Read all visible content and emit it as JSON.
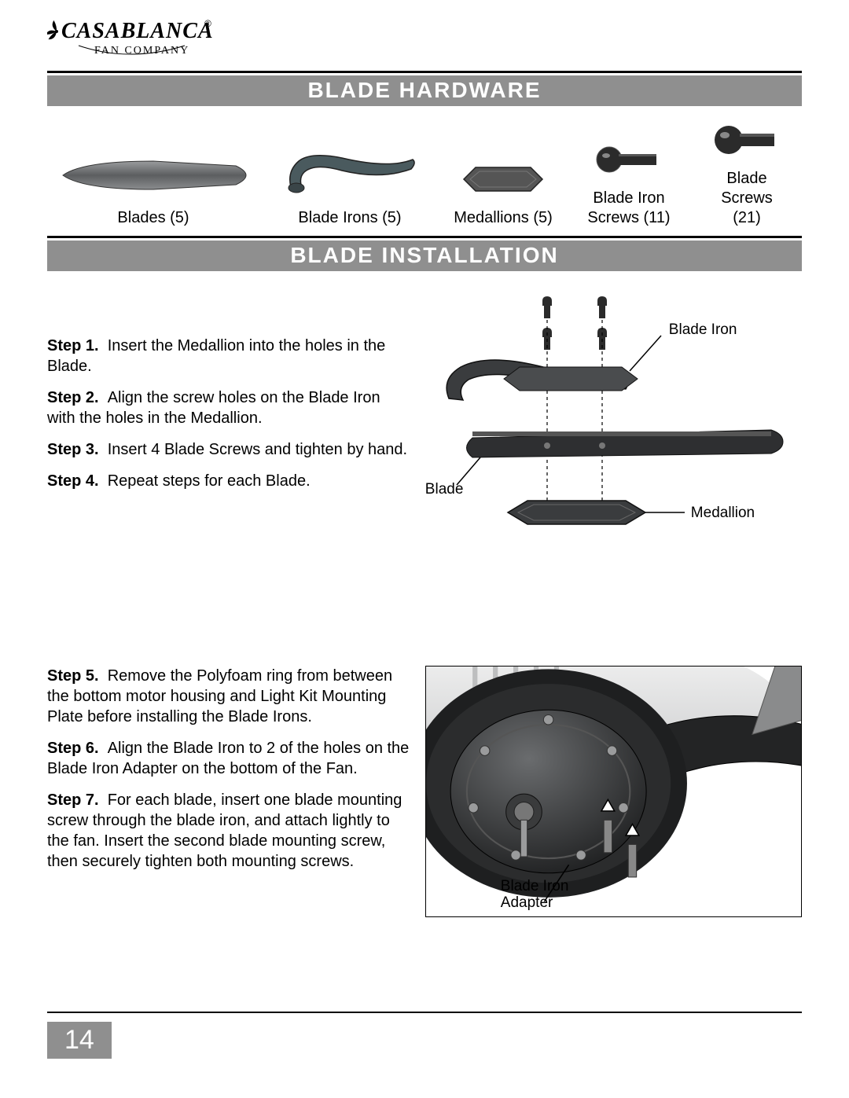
{
  "logo": {
    "brand": "CASABLANCA",
    "subtitle": "FAN COMPANY"
  },
  "sections": {
    "hardware_title": "BLADE HARDWARE",
    "installation_title": "BLADE INSTALLATION"
  },
  "hardware": [
    {
      "label": "Blades (5)"
    },
    {
      "label": "Blade Irons (5)"
    },
    {
      "label": "Medallions (5)"
    },
    {
      "label": "Blade Iron Screws (11)"
    },
    {
      "label": "Blade Screws (21)"
    }
  ],
  "steps_a": [
    {
      "num": "Step 1.",
      "text": "Insert the Medallion into the holes in the Blade."
    },
    {
      "num": "Step 2.",
      "text": "Align the screw holes on the Blade Iron with the holes in the Medallion."
    },
    {
      "num": "Step 3.",
      "text": "Insert 4 Blade Screws and tighten by hand."
    },
    {
      "num": "Step 4.",
      "text": "Repeat steps for each Blade."
    }
  ],
  "steps_b": [
    {
      "num": "Step 5.",
      "text": "Remove the Polyfoam ring from between the bottom motor housing and Light Kit Mounting Plate before installing the Blade Irons."
    },
    {
      "num": "Step 6.",
      "text": "Align the Blade Iron to 2 of the holes on the Blade Iron Adapter on the bottom of the Fan."
    },
    {
      "num": "Step 7.",
      "text": "For each blade, insert one blade mounting screw through the blade iron, and attach lightly to the fan. Insert the second blade mounting screw, then securely tighten both mounting screws."
    }
  ],
  "callouts": {
    "blade_iron": "Blade Iron",
    "blade": "Blade",
    "medallion": "Medallion",
    "adapter": "Blade Iron Adapter"
  },
  "page_number": "14",
  "colors": {
    "bar_bg": "#8f8f8f",
    "bar_fg": "#ffffff",
    "blade_fill": "#6b6d70",
    "iron_fill": "#4a5a5e",
    "medallion_fill": "#555555",
    "screw_fill": "#2b2b2b"
  }
}
